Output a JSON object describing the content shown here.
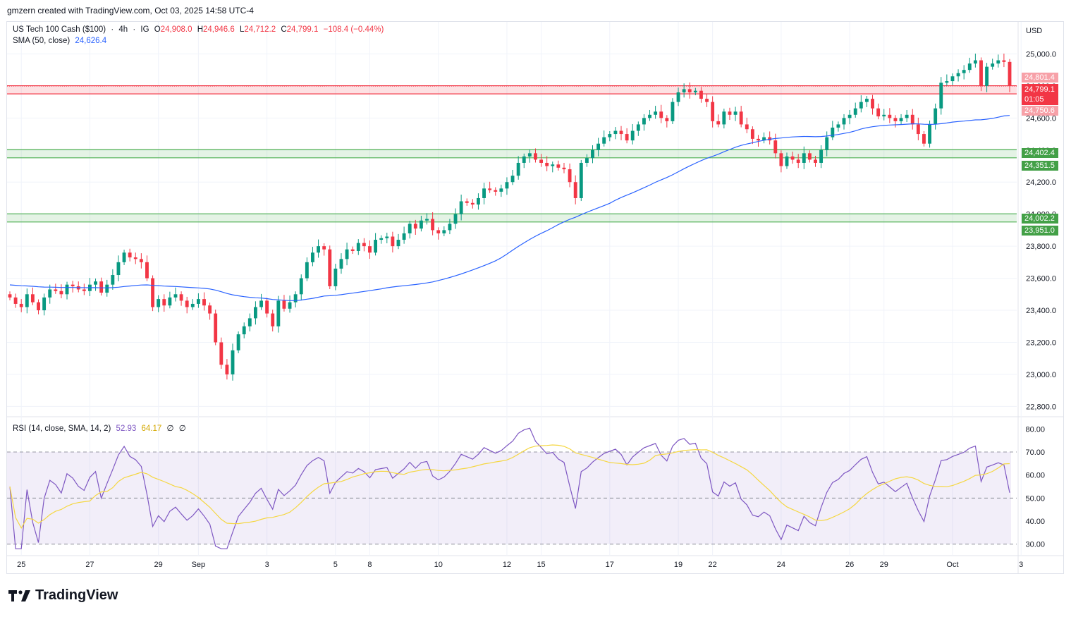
{
  "header": {
    "credit": "gmzern created with TradingView.com, Oct 03, 2025 14:58 UTC-4"
  },
  "brand": {
    "logo_text": "TradingView"
  },
  "currency": "USD",
  "legend": {
    "symbol": "US Tech 100 Cash ($100)",
    "sep1": "·",
    "interval": "4h",
    "sep2": "·",
    "broker": "IG",
    "open_label": "O",
    "open": "24,908.0",
    "high_label": "H",
    "high": "24,946.6",
    "low_label": "L",
    "low": "24,712.2",
    "close_label": "C",
    "close": "24,799.1",
    "change": "−108.4 (−0.44%)",
    "sma_label": "SMA (50, close)",
    "sma_value": "24,626.4",
    "rsi_label": "RSI (14, close, SMA, 14, 2)",
    "rsi_value": "52.93",
    "rsi_ma_value": "64.17",
    "rsi_empty1": "∅",
    "rsi_empty2": "∅"
  },
  "price_labels": {
    "zone_top": "24,801.4",
    "last_price": "24,799.1",
    "countdown": "01:05",
    "zone_bottom": "24,750.6",
    "green1_top": "24,402.4",
    "green1_bottom": "24,351.5",
    "green2_top": "24,002.2",
    "green2_bottom": "23,951.0"
  },
  "colors": {
    "up": "#089981",
    "down": "#f23645",
    "sma": "#2962ff",
    "rsi": "#7e57c2",
    "rsi_ma": "#f5d742",
    "zone_red": "#f23645",
    "zone_green": "#4caf50"
  },
  "chart_data": {
    "type": "candlestick",
    "title": "US Tech 100 Cash ($100) · 4h · IG",
    "price_axis": {
      "ylim": [
        22740,
        25200
      ],
      "ticks": [
        "25,000.0",
        "24,800.0",
        "24,600.0",
        "24,400.0",
        "24,200.0",
        "24,000.0",
        "23,800.0",
        "23,600.0",
        "23,400.0",
        "23,200.0",
        "23,000.0",
        "22,800.0"
      ],
      "tick_values": [
        25000,
        24800,
        24600,
        24400,
        24200,
        24000,
        23800,
        23600,
        23400,
        23200,
        23000,
        22800
      ]
    },
    "x_axis": {
      "labels": [
        "25",
        "27",
        "29",
        "Sep",
        "3",
        "5",
        "8",
        "10",
        "12",
        "15",
        "17",
        "19",
        "22",
        "24",
        "26",
        "29",
        "Oct",
        "3"
      ],
      "label_bar_index": [
        2,
        14,
        26,
        33,
        45,
        57,
        63,
        75,
        87,
        93,
        105,
        117,
        123,
        135,
        147,
        153,
        165,
        177
      ]
    },
    "zones": [
      {
        "color": "red",
        "top": 24801.4,
        "bottom": 24750.6
      },
      {
        "color": "green",
        "top": 24402.4,
        "bottom": 24351.5
      },
      {
        "color": "green",
        "top": 24002.2,
        "bottom": 23951.0
      }
    ],
    "candles_close": [
      23480,
      23440,
      23420,
      23500,
      23450,
      23400,
      23480,
      23530,
      23520,
      23500,
      23560,
      23550,
      23530,
      23520,
      23560,
      23580,
      23510,
      23560,
      23620,
      23700,
      23760,
      23730,
      23720,
      23700,
      23600,
      23420,
      23470,
      23430,
      23480,
      23500,
      23460,
      23420,
      23440,
      23470,
      23430,
      23380,
      23200,
      23060,
      23000,
      23150,
      23250,
      23300,
      23350,
      23420,
      23460,
      23380,
      23300,
      23460,
      23410,
      23450,
      23500,
      23600,
      23700,
      23760,
      23800,
      23780,
      23550,
      23660,
      23720,
      23780,
      23770,
      23820,
      23800,
      23760,
      23840,
      23850,
      23860,
      23800,
      23840,
      23880,
      23940,
      23910,
      23960,
      23970,
      23900,
      23880,
      23900,
      23940,
      24000,
      24080,
      24070,
      24060,
      24100,
      24160,
      24150,
      24140,
      24160,
      24200,
      24240,
      24320,
      24360,
      24380,
      24340,
      24320,
      24300,
      24310,
      24290,
      24280,
      24200,
      24100,
      24320,
      24350,
      24400,
      24440,
      24480,
      24500,
      24520,
      24500,
      24460,
      24520,
      24560,
      24600,
      24620,
      24640,
      24600,
      24580,
      24700,
      24760,
      24780,
      24760,
      24770,
      24720,
      24700,
      24580,
      24560,
      24640,
      24620,
      24640,
      24560,
      24530,
      24470,
      24460,
      24480,
      24460,
      24380,
      24300,
      24360,
      24340,
      24320,
      24380,
      24340,
      24320,
      24400,
      24480,
      24540,
      24560,
      24600,
      24620,
      24660,
      24700,
      24720,
      24660,
      24610,
      24620,
      24600,
      24580,
      24600,
      24620,
      24560,
      24500,
      24440,
      24560,
      24660,
      24820,
      24830,
      24860,
      24880,
      24900,
      24940,
      24960,
      24800,
      24920,
      24940,
      24960,
      24950,
      24800
    ],
    "rsi": {
      "ylim": [
        25,
        85
      ],
      "ticks": [
        "80.00",
        "70.00",
        "60.00",
        "50.00",
        "40.00",
        "30.00"
      ],
      "tick_values": [
        80,
        70,
        60,
        50,
        40,
        30
      ],
      "bands": [
        30,
        50,
        70
      ]
    }
  }
}
